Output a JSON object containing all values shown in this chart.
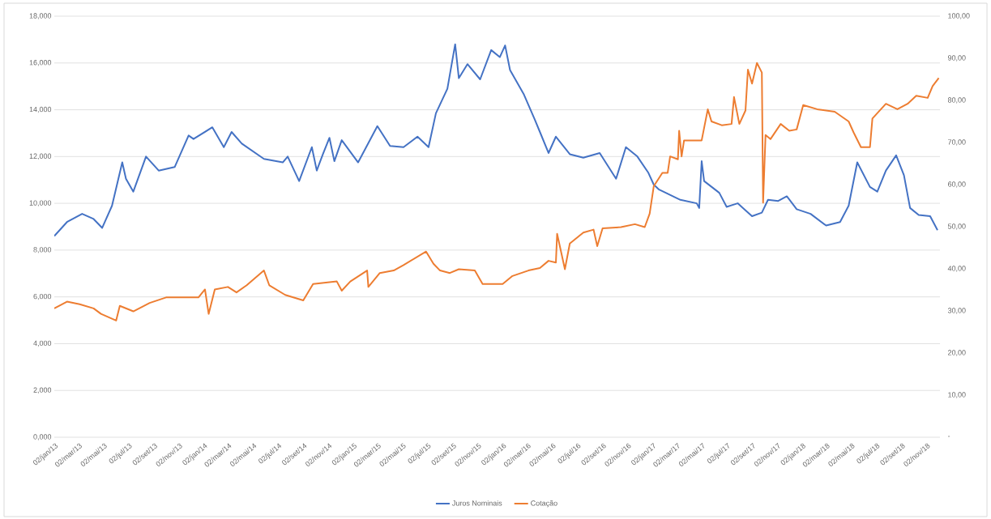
{
  "chart_data": {
    "type": "line",
    "grid": "y",
    "legend": "bottom",
    "xlim": [
      "2013-01-02",
      "2018-12-05"
    ],
    "xticks": [
      {
        "value": "2013-01-02",
        "label": "02/jan/13"
      },
      {
        "value": "2013-03-02",
        "label": "02/mar/13"
      },
      {
        "value": "2013-05-02",
        "label": "02/mai/13"
      },
      {
        "value": "2013-07-02",
        "label": "02/jul/13"
      },
      {
        "value": "2013-09-02",
        "label": "02/set/13"
      },
      {
        "value": "2013-11-02",
        "label": "02/nov/13"
      },
      {
        "value": "2014-01-02",
        "label": "02/jan/14"
      },
      {
        "value": "2014-03-02",
        "label": "02/mar/14"
      },
      {
        "value": "2014-05-02",
        "label": "02/mai/14"
      },
      {
        "value": "2014-07-02",
        "label": "02/jul/14"
      },
      {
        "value": "2014-09-02",
        "label": "02/set/14"
      },
      {
        "value": "2014-11-02",
        "label": "02/nov/14"
      },
      {
        "value": "2015-01-02",
        "label": "02/jan/15"
      },
      {
        "value": "2015-03-02",
        "label": "02/mar/15"
      },
      {
        "value": "2015-05-02",
        "label": "02/mai/15"
      },
      {
        "value": "2015-07-02",
        "label": "02/jul/15"
      },
      {
        "value": "2015-09-02",
        "label": "02/set/15"
      },
      {
        "value": "2015-11-02",
        "label": "02/nov/15"
      },
      {
        "value": "2016-01-02",
        "label": "02/jan/16"
      },
      {
        "value": "2016-03-02",
        "label": "02/mar/16"
      },
      {
        "value": "2016-05-02",
        "label": "02/mai/16"
      },
      {
        "value": "2016-07-02",
        "label": "02/jul/16"
      },
      {
        "value": "2016-09-02",
        "label": "02/set/16"
      },
      {
        "value": "2016-11-02",
        "label": "02/nov/16"
      },
      {
        "value": "2017-01-02",
        "label": "02/jan/17"
      },
      {
        "value": "2017-03-02",
        "label": "02/mar/17"
      },
      {
        "value": "2017-05-02",
        "label": "02/mai/17"
      },
      {
        "value": "2017-07-02",
        "label": "02/jul/17"
      },
      {
        "value": "2017-09-02",
        "label": "02/set/17"
      },
      {
        "value": "2017-11-02",
        "label": "02/nov/17"
      },
      {
        "value": "2018-01-02",
        "label": "02/jan/18"
      },
      {
        "value": "2018-03-02",
        "label": "02/mar/18"
      },
      {
        "value": "2018-05-02",
        "label": "02/mai/18"
      },
      {
        "value": "2018-07-02",
        "label": "02/jul/18"
      },
      {
        "value": "2018-09-02",
        "label": "02/set/18"
      },
      {
        "value": "2018-11-02",
        "label": "02/nov/18"
      }
    ],
    "ylim": [
      0,
      18
    ],
    "yticks": [
      {
        "value": 0,
        "label": "0,000"
      },
      {
        "value": 2,
        "label": "2,000"
      },
      {
        "value": 4,
        "label": "4,000"
      },
      {
        "value": 6,
        "label": "6,000"
      },
      {
        "value": 8,
        "label": "8,000"
      },
      {
        "value": 10,
        "label": "10,000"
      },
      {
        "value": 12,
        "label": "12,000"
      },
      {
        "value": 14,
        "label": "14,000"
      },
      {
        "value": 16,
        "label": "16,000"
      },
      {
        "value": 18,
        "label": "18,000"
      }
    ],
    "y2lim": [
      0,
      100
    ],
    "y2ticks": [
      {
        "value": 0,
        "label": "-"
      },
      {
        "value": 10,
        "label": "10,00"
      },
      {
        "value": 20,
        "label": "20,00"
      },
      {
        "value": 30,
        "label": "30,00"
      },
      {
        "value": 40,
        "label": "40,00"
      },
      {
        "value": 50,
        "label": "50,00"
      },
      {
        "value": 60,
        "label": "60,00"
      },
      {
        "value": 70,
        "label": "70,00"
      },
      {
        "value": 80,
        "label": "80,00"
      },
      {
        "value": 90,
        "label": "90,00"
      },
      {
        "value": 100,
        "label": "100,00"
      }
    ],
    "series": [
      {
        "name": "Juros Nominais",
        "color": "#4472c4",
        "x": [
          "2013-01-02",
          "2013-02-02",
          "2013-03-11",
          "2013-04-08",
          "2013-04-29",
          "2013-05-23",
          "2013-06-17",
          "2013-06-26",
          "2013-07-14",
          "2013-08-14",
          "2013-09-14",
          "2013-10-23",
          "2013-11-26",
          "2013-12-08",
          "2014-01-23",
          "2014-02-20",
          "2014-03-11",
          "2014-04-05",
          "2014-05-29",
          "2014-07-14",
          "2014-07-26",
          "2014-08-23",
          "2014-09-23",
          "2014-10-05",
          "2014-10-20",
          "2014-11-05",
          "2014-11-17",
          "2014-12-05",
          "2015-01-14",
          "2015-03-02",
          "2015-04-02",
          "2015-05-05",
          "2015-06-08",
          "2015-07-05",
          "2015-07-23",
          "2015-08-20",
          "2015-09-08",
          "2015-09-17",
          "2015-10-08",
          "2015-11-08",
          "2015-12-05",
          "2015-12-26",
          "2016-01-08",
          "2016-01-20",
          "2016-02-23",
          "2016-03-20",
          "2016-04-02",
          "2016-04-23",
          "2016-05-11",
          "2016-06-14",
          "2016-07-17",
          "2016-08-26",
          "2016-10-05",
          "2016-10-29",
          "2016-11-26",
          "2016-12-23",
          "2017-01-05",
          "2017-01-17",
          "2017-03-11",
          "2017-04-20",
          "2017-04-26",
          "2017-05-02",
          "2017-05-08",
          "2017-06-14",
          "2017-07-02",
          "2017-07-29",
          "2017-09-02",
          "2017-09-26",
          "2017-10-11",
          "2017-11-05",
          "2017-11-26",
          "2017-12-20",
          "2018-01-23",
          "2018-03-02",
          "2018-04-05",
          "2018-04-26",
          "2018-05-17",
          "2018-06-17",
          "2018-07-05",
          "2018-07-26",
          "2018-08-20",
          "2018-09-08",
          "2018-09-23",
          "2018-10-14",
          "2018-11-11",
          "2018-11-29"
        ],
        "values": [
          8.6,
          9.2,
          9.55,
          9.33,
          8.95,
          9.9,
          11.75,
          11.05,
          10.5,
          12.0,
          11.4,
          11.55,
          12.9,
          12.75,
          13.25,
          12.4,
          13.05,
          12.55,
          11.9,
          11.75,
          12.0,
          10.95,
          12.4,
          11.4,
          12.1,
          12.8,
          11.8,
          12.7,
          11.75,
          13.3,
          12.45,
          12.4,
          12.85,
          12.4,
          13.85,
          14.9,
          16.8,
          15.35,
          15.95,
          15.3,
          16.55,
          16.25,
          16.75,
          15.7,
          14.65,
          13.6,
          13.05,
          12.15,
          12.85,
          12.1,
          11.95,
          12.15,
          11.05,
          12.4,
          12.0,
          11.3,
          10.8,
          10.6,
          10.15,
          10.0,
          9.8,
          11.8,
          10.95,
          10.45,
          9.85,
          10.0,
          9.45,
          9.6,
          10.15,
          10.1,
          10.3,
          9.75,
          9.55,
          9.05,
          9.2,
          9.9,
          11.75,
          10.7,
          10.5,
          11.4,
          12.05,
          11.2,
          9.8,
          9.5,
          9.45,
          8.85
        ]
      },
      {
        "name": "Cotação",
        "color": "#ed7d31",
        "axis": "y2",
        "x": [
          "2013-01-02",
          "2013-02-02",
          "2013-03-05",
          "2013-04-08",
          "2013-04-26",
          "2013-06-02",
          "2013-06-11",
          "2013-07-14",
          "2013-08-23",
          "2013-10-02",
          "2013-12-20",
          "2014-01-05",
          "2014-01-14",
          "2014-01-29",
          "2014-03-02",
          "2014-03-23",
          "2014-04-17",
          "2014-05-29",
          "2014-06-11",
          "2014-07-20",
          "2014-09-02",
          "2014-09-26",
          "2014-11-23",
          "2014-12-05",
          "2014-12-26",
          "2015-02-05",
          "2015-02-08",
          "2015-03-08",
          "2015-04-11",
          "2015-05-05",
          "2015-06-29",
          "2015-07-17",
          "2015-08-02",
          "2015-08-26",
          "2015-09-17",
          "2015-10-26",
          "2015-11-14",
          "2016-01-02",
          "2016-01-26",
          "2016-03-05",
          "2016-04-02",
          "2016-04-23",
          "2016-05-11",
          "2016-05-14",
          "2016-06-02",
          "2016-06-14",
          "2016-07-17",
          "2016-08-11",
          "2016-08-20",
          "2016-09-02",
          "2016-10-17",
          "2016-11-20",
          "2016-12-14",
          "2016-12-26",
          "2017-01-05",
          "2017-01-26",
          "2017-02-08",
          "2017-02-14",
          "2017-03-05",
          "2017-03-08",
          "2017-03-14",
          "2017-03-20",
          "2017-05-02",
          "2017-05-17",
          "2017-05-26",
          "2017-06-20",
          "2017-07-14",
          "2017-07-20",
          "2017-08-02",
          "2017-08-17",
          "2017-08-23",
          "2017-09-02",
          "2017-09-14",
          "2017-09-26",
          "2017-09-29",
          "2017-10-05",
          "2017-10-17",
          "2017-11-11",
          "2017-12-02",
          "2017-12-20",
          "2018-01-05",
          "2018-02-08",
          "2018-03-23",
          "2018-04-26",
          "2018-05-08",
          "2018-05-26",
          "2018-06-17",
          "2018-06-23",
          "2018-07-26",
          "2018-08-23",
          "2018-09-17",
          "2018-10-08",
          "2018-11-05",
          "2018-11-17",
          "2018-12-02"
        ],
        "values": [
          30.6,
          32.2,
          31.6,
          30.6,
          29.3,
          27.7,
          31.2,
          29.9,
          31.9,
          33.2,
          33.2,
          35.1,
          29.3,
          35.1,
          35.7,
          34.4,
          36.1,
          39.6,
          36.1,
          33.8,
          32.5,
          36.4,
          37.0,
          34.8,
          37.0,
          39.6,
          35.7,
          39.0,
          39.6,
          40.9,
          44.1,
          41.2,
          39.6,
          39.0,
          39.9,
          39.6,
          36.4,
          36.4,
          38.3,
          39.6,
          40.2,
          41.9,
          41.5,
          48.3,
          39.9,
          46.0,
          48.6,
          49.3,
          45.4,
          49.6,
          49.9,
          50.6,
          49.9,
          53.1,
          59.6,
          62.8,
          62.8,
          66.7,
          66.0,
          72.8,
          66.7,
          70.5,
          70.5,
          77.9,
          75.0,
          74.1,
          74.4,
          80.8,
          74.4,
          77.6,
          87.3,
          84.0,
          88.9,
          86.6,
          55.7,
          71.8,
          70.8,
          74.4,
          72.8,
          73.1,
          78.9,
          77.9,
          77.3,
          75.0,
          72.4,
          68.9,
          68.9,
          75.7,
          79.2,
          77.9,
          79.2,
          81.1,
          80.6,
          83.4,
          85.3
        ]
      }
    ]
  }
}
